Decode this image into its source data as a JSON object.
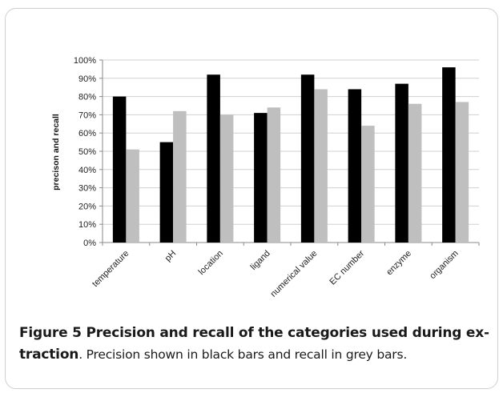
{
  "chart_data": {
    "type": "bar",
    "title": "",
    "xlabel": "",
    "ylabel": "precison and recall",
    "ylim": [
      0,
      100
    ],
    "yticks": [
      "0%",
      "10%",
      "20%",
      "30%",
      "40%",
      "50%",
      "60%",
      "70%",
      "80%",
      "90%",
      "100%"
    ],
    "categories": [
      "temperature",
      "pH",
      "location",
      "ligand",
      "numerical value",
      "EC number",
      "enzyme",
      "organism"
    ],
    "series": [
      {
        "values": [
          80,
          55,
          92,
          71,
          92,
          84,
          87,
          96
        ],
        "color": "#000000"
      },
      {
        "values": [
          51,
          72,
          70,
          74,
          84,
          64,
          76,
          77
        ],
        "color": "#bfbfbf"
      }
    ],
    "grid": true,
    "legend": "none"
  },
  "caption": {
    "bold": "Figure 5 Precision and recall of the categories used during ex-traction",
    "rest": ". Precision shown in black bars and recall in grey bars."
  }
}
